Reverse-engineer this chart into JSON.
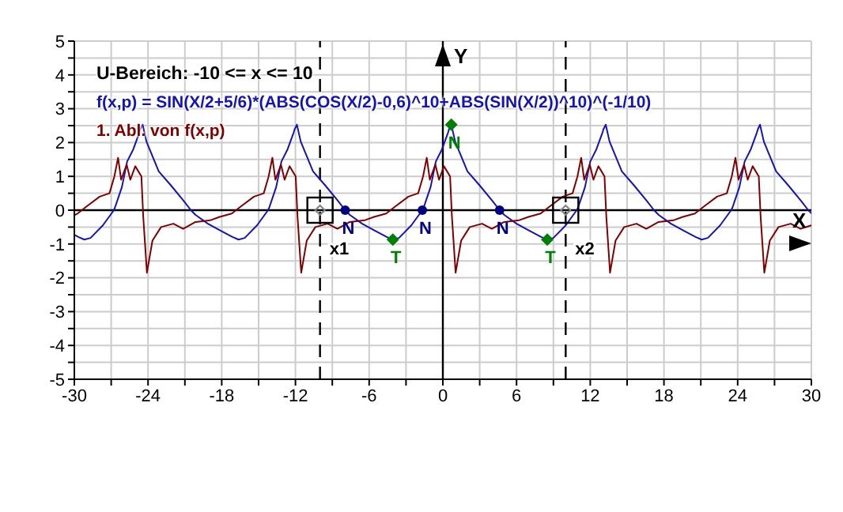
{
  "chart_data": {
    "type": "line",
    "subtitle": "U-Bereich: -10 <= x <= 10",
    "xlabel": "X",
    "ylabel": "Y",
    "xlim": [
      -30,
      30
    ],
    "ylim": [
      -5,
      5
    ],
    "xticks": [
      -30,
      {
        "value": -27,
        "label": null
      },
      -24,
      {
        "value": -21,
        "label": null
      },
      -18,
      {
        "value": -15,
        "label": null
      },
      -12,
      {
        "value": -9,
        "label": null
      },
      -6,
      {
        "value": -3,
        "label": null
      },
      0,
      {
        "value": 3,
        "label": null
      },
      6,
      {
        "value": 9,
        "label": null
      },
      12,
      {
        "value": 15,
        "label": null
      },
      18,
      {
        "value": 21,
        "label": null
      },
      24,
      {
        "value": 27,
        "label": null
      },
      30
    ],
    "yticks": [
      -5,
      {
        "value": -4.5,
        "label": null
      },
      -4,
      {
        "value": -3.5,
        "label": null
      },
      -3,
      {
        "value": -2.5,
        "label": null
      },
      -2,
      {
        "value": -1.5,
        "label": null
      },
      -1,
      {
        "value": -0.5,
        "label": null
      },
      0,
      {
        "value": 0.5,
        "label": null
      },
      1,
      {
        "value": 1.5,
        "label": null
      },
      2,
      {
        "value": 2.5,
        "label": null
      },
      3,
      {
        "value": 3.5,
        "label": null
      },
      4,
      {
        "value": 4.5,
        "label": null
      },
      5
    ],
    "grid": true,
    "legend": "top left",
    "line_style": "solid",
    "series": [
      {
        "name": "f(x,p) = SIN(X/2+5/6)*(ABS(COS(X/2)-0,6)^10+ABS(SIN(X/2))^10)^(-1/10)",
        "color": "#1414b4",
        "x": [
          -30,
          -29.68,
          -29.18,
          -28.68,
          -27.68,
          -26.78,
          -26.7,
          -26.13,
          -25.7,
          -25.2,
          -24.7,
          -24.63,
          -24.44,
          -24.13,
          -23.13,
          -22.13,
          -21.13,
          -20.51,
          -20.13,
          -19.13,
          -18.13,
          -17.13,
          -16.63,
          -16.13,
          -15.13,
          -14.23,
          -14.14,
          -13.57,
          -13.14,
          -12.64,
          -12.14,
          -12.07,
          -11.88,
          -11.57,
          -10.57,
          -9.57,
          -8.57,
          -7.95,
          -7.57,
          -6.57,
          -5.57,
          -4.57,
          -4.07,
          -3.57,
          -2.57,
          -1.67,
          -1.57,
          -1,
          -0.57,
          -0.07,
          0.43,
          0.5,
          0.69,
          1,
          2,
          3,
          4,
          4.62,
          5,
          6,
          7,
          8,
          8.5,
          9,
          10,
          10.9,
          11,
          11.57,
          12,
          12.5,
          13,
          13.07,
          13.26,
          13.57,
          14.57,
          15.57,
          16.57,
          17.19,
          17.57,
          18.57,
          19.57,
          20.57,
          21.07,
          21.57,
          22.57,
          23.47,
          23.57,
          24.14,
          24.57,
          25.07,
          25.57,
          25.64,
          25.82,
          26.13,
          27.13,
          28.13,
          29.13,
          29.75,
          30
        ],
        "values": [
          -0.73,
          -0.79,
          -0.87,
          -0.82,
          -0.45,
          0,
          0.07,
          0.68,
          1.44,
          1.8,
          2.3,
          2.39,
          2.53,
          2.03,
          1.15,
          0.73,
          0.29,
          0,
          -0.14,
          -0.4,
          -0.6,
          -0.79,
          -0.87,
          -0.82,
          -0.45,
          0,
          0.07,
          0.68,
          1.44,
          1.8,
          2.3,
          2.39,
          2.53,
          2.03,
          1.15,
          0.73,
          0.29,
          0,
          -0.14,
          -0.4,
          -0.6,
          -0.79,
          -0.87,
          -0.82,
          -0.45,
          0,
          0.07,
          0.68,
          1.44,
          1.8,
          2.3,
          2.39,
          2.53,
          2.03,
          1.15,
          0.73,
          0.29,
          0,
          -0.14,
          -0.4,
          -0.6,
          -0.79,
          -0.87,
          -0.82,
          -0.45,
          0,
          0.07,
          0.68,
          1.44,
          1.8,
          2.3,
          2.39,
          2.53,
          2.03,
          1.15,
          0.73,
          0.29,
          0,
          -0.14,
          -0.4,
          -0.6,
          -0.79,
          -0.87,
          -0.82,
          -0.45,
          0,
          0.07,
          0.68,
          1.44,
          1.8,
          2.3,
          2.39,
          2.53,
          2.03,
          1.15,
          0.73,
          0.29,
          0,
          -0.09
        ]
      },
      {
        "name": "1. Abl. von f(x,p)",
        "color": "#800000",
        "x": [
          -30,
          -29.74,
          -29.04,
          -27.94,
          -27.14,
          -26.74,
          -26.44,
          -26.19,
          -25.74,
          -25.44,
          -25.04,
          -24.54,
          -24.39,
          -24.09,
          -23.64,
          -22.94,
          -21.94,
          -21.14,
          -20.14,
          -18.94,
          -18.17,
          -17.18,
          -16.48,
          -15.38,
          -14.58,
          -14.18,
          -13.88,
          -13.63,
          -13.18,
          -12.88,
          -12.48,
          -11.98,
          -11.83,
          -11.53,
          -11.08,
          -10.38,
          -9.38,
          -8.58,
          -7.58,
          -6.38,
          -5.6,
          -4.61,
          -3.91,
          -2.81,
          -2.01,
          -1.61,
          -1.31,
          -1.06,
          -0.61,
          -0.31,
          0.09,
          0.59,
          0.74,
          1.04,
          1.49,
          2.19,
          3.19,
          3.99,
          4.99,
          6.19,
          6.97,
          7.96,
          8.66,
          9.76,
          10.56,
          10.96,
          11.26,
          11.51,
          11.96,
          12.26,
          12.66,
          13.16,
          13.31,
          13.61,
          14.06,
          14.76,
          15.76,
          16.56,
          17.56,
          18.76,
          19.53,
          20.52,
          21.22,
          22.32,
          23.12,
          23.52,
          23.82,
          24.07,
          24.52,
          24.82,
          25.22,
          25.72,
          25.87,
          26.17,
          26.62,
          27.32,
          28.32,
          29.12,
          30
        ],
        "values": [
          -0.15,
          -0.1,
          0.1,
          0.4,
          0.5,
          1,
          1.55,
          0.9,
          1.35,
          0.9,
          1.3,
          1,
          -0.2,
          -1.85,
          -0.9,
          -0.5,
          -0.4,
          -0.55,
          -0.35,
          -0.3,
          -0.2,
          -0.1,
          0.1,
          0.4,
          0.5,
          1,
          1.55,
          0.9,
          1.35,
          0.9,
          1.3,
          1,
          -0.2,
          -1.85,
          -0.9,
          -0.5,
          -0.4,
          -0.55,
          -0.35,
          -0.3,
          -0.2,
          -0.1,
          0.1,
          0.4,
          0.5,
          1,
          1.55,
          0.9,
          1.35,
          0.9,
          1.3,
          1,
          -0.2,
          -1.85,
          -0.9,
          -0.5,
          -0.4,
          -0.55,
          -0.35,
          -0.3,
          -0.2,
          -0.1,
          0.1,
          0.4,
          0.5,
          1,
          1.55,
          0.9,
          1.35,
          0.9,
          1.3,
          1,
          -0.2,
          -1.85,
          -0.9,
          -0.5,
          -0.4,
          -0.55,
          -0.35,
          -0.3,
          -0.2,
          -0.1,
          0.1,
          0.4,
          0.5,
          1,
          1.55,
          0.9,
          1.35,
          0.9,
          1.3,
          1,
          -0.2,
          -1.85,
          -0.9,
          -0.5,
          -0.4,
          -0.55,
          -0.45
        ]
      },
      {
        "type": "scatter",
        "color": "#000080",
        "marker": "circle",
        "x": [
          -7.95,
          -1.67,
          4.62
        ],
        "values": [
          0,
          0,
          0
        ],
        "value_labels": [
          "N",
          "N",
          "N"
        ]
      },
      {
        "type": "scatter",
        "color": "#008000",
        "marker": "diamond",
        "x": [
          -4.07,
          0.69,
          8.5
        ],
        "values": [
          -0.87,
          2.53,
          -0.87
        ],
        "value_labels": [
          "T",
          "N",
          "T"
        ]
      },
      {
        "type": "scatter",
        "color": "#000000",
        "marker": "square",
        "x": [
          -10,
          10
        ],
        "values": [
          0,
          0
        ]
      }
    ],
    "ref_lines": [
      {
        "axis": "x",
        "value": -10,
        "label": "x1",
        "color": "#000000",
        "line_style": "dashed"
      },
      {
        "axis": "x",
        "value": 10,
        "label": "x2",
        "color": "#000000",
        "line_style": "dashed"
      }
    ]
  }
}
